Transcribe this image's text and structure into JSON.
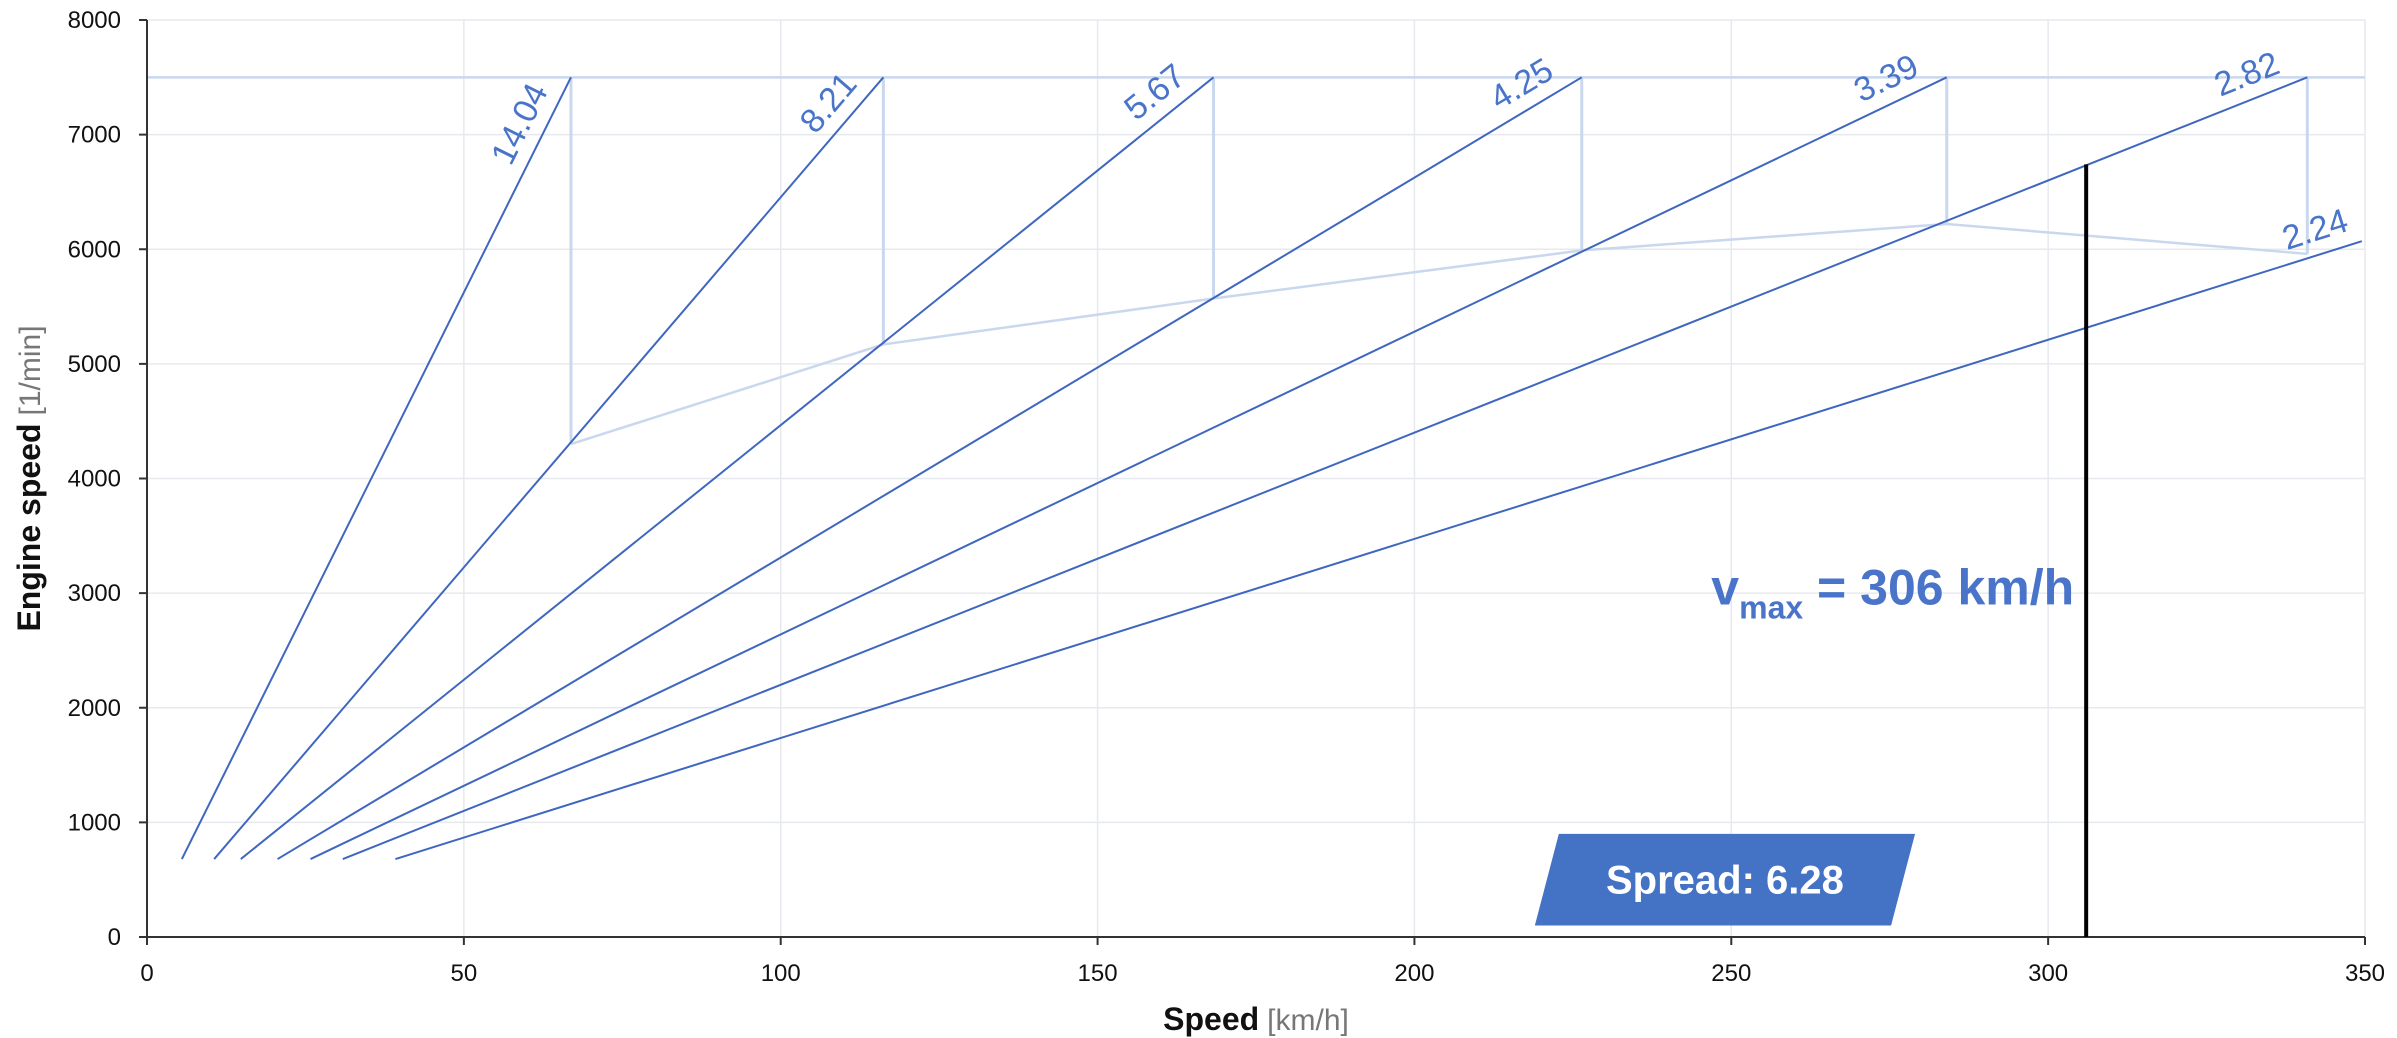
{
  "chart_data": {
    "type": "line",
    "title": "",
    "xlabel": "Speed",
    "xlabel_unit": "[km/h]",
    "ylabel": "Engine speed",
    "ylabel_unit": "[1/min]",
    "xlim": [
      0,
      350
    ],
    "ylim": [
      0,
      8000
    ],
    "x_ticks": [
      0,
      50,
      100,
      150,
      200,
      250,
      300,
      350
    ],
    "y_ticks": [
      0,
      1000,
      2000,
      3000,
      4000,
      5000,
      6000,
      7000,
      8000
    ],
    "grid": true,
    "max_engine_speed": 7500,
    "series": [
      {
        "ratio_label": "14.04",
        "values": [
          [
            5.5,
            680
          ],
          [
            66.9,
            7500
          ]
        ]
      },
      {
        "ratio_label": "8.21",
        "values": [
          [
            10.6,
            680
          ],
          [
            116.2,
            7500
          ]
        ]
      },
      {
        "ratio_label": "5.67",
        "values": [
          [
            14.8,
            680
          ],
          [
            168.3,
            7500
          ]
        ]
      },
      {
        "ratio_label": "4.25",
        "values": [
          [
            20.6,
            680
          ],
          [
            226.4,
            7500
          ]
        ]
      },
      {
        "ratio_label": "3.39",
        "values": [
          [
            25.8,
            680
          ],
          [
            284.0,
            7500
          ]
        ]
      },
      {
        "ratio_label": "2.82",
        "values": [
          [
            30.9,
            680
          ],
          [
            340.9,
            7500
          ]
        ]
      },
      {
        "ratio_label": "2.24",
        "values": [
          [
            39.2,
            680
          ],
          [
            349.5,
            6070
          ]
        ]
      }
    ],
    "shift_points": [
      {
        "x": 66.9,
        "from": 7500,
        "to": 4300
      },
      {
        "x": 116.2,
        "from": 7500,
        "to": 5170
      },
      {
        "x": 168.3,
        "from": 7500,
        "to": 5570
      },
      {
        "x": 226.4,
        "from": 7500,
        "to": 5990
      },
      {
        "x": 284.0,
        "from": 7500,
        "to": 6220
      },
      {
        "x": 340.9,
        "from": 7500,
        "to": 5960
      }
    ],
    "vmax": {
      "x": 306,
      "y_top": 6740,
      "label_main": "v",
      "label_sub": "max",
      "label_value": " = 306 km/h"
    },
    "spread": {
      "label": "Spread: 6.28"
    },
    "colors": {
      "gear_line": "#3f67bf",
      "shift_line": "#c9d8ee",
      "vmax_line": "#000000",
      "label": "#4a74c9",
      "spread_box": "#4472c4",
      "grid": "#e6e9ee"
    }
  }
}
